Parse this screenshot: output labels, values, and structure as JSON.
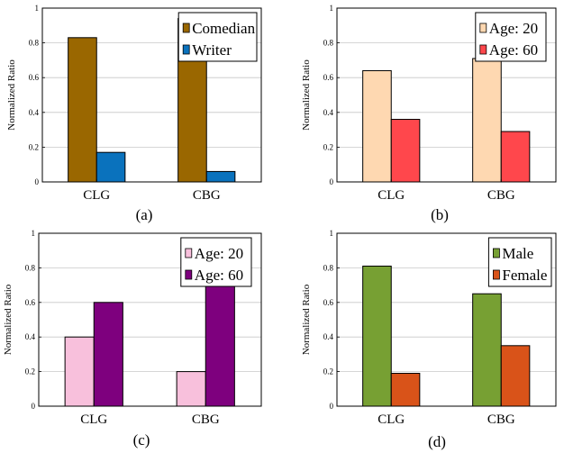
{
  "chart_data": [
    {
      "type": "bar",
      "caption": "(a)",
      "ylabel": "Normalized Ratio",
      "ylim": [
        0,
        1
      ],
      "yticks": [
        "0",
        "0.2",
        "0.4",
        "0.6",
        "0.8",
        "1"
      ],
      "categories": [
        "CLG",
        "CBG"
      ],
      "grid": true,
      "legend_position": "top-right",
      "series": [
        {
          "name": "Comedian",
          "values": [
            0.83,
            0.94
          ],
          "color": "#9a6700"
        },
        {
          "name": "Writer",
          "values": [
            0.17,
            0.06
          ],
          "color": "#0a72bd"
        }
      ]
    },
    {
      "type": "bar",
      "caption": "(b)",
      "ylabel": "Normalized Ratio",
      "ylim": [
        0,
        1
      ],
      "yticks": [
        "0",
        "0.2",
        "0.4",
        "0.6",
        "0.8",
        "1"
      ],
      "categories": [
        "CLG",
        "CBG"
      ],
      "grid": true,
      "legend_position": "top-right",
      "series": [
        {
          "name": "Age: 20",
          "values": [
            0.64,
            0.71
          ],
          "color": "#fed8b1"
        },
        {
          "name": "Age: 60",
          "values": [
            0.36,
            0.29
          ],
          "color": "#ff474c"
        }
      ]
    },
    {
      "type": "bar",
      "caption": "(c)",
      "ylabel": "Normalized Ratio",
      "ylim": [
        0,
        1
      ],
      "yticks": [
        "0",
        "0.2",
        "0.4",
        "0.6",
        "0.8",
        "1"
      ],
      "categories": [
        "CLG",
        "CBG"
      ],
      "grid": true,
      "legend_position": "top-right",
      "series": [
        {
          "name": "Age: 20",
          "values": [
            0.4,
            0.2
          ],
          "color": "#f8c0dc"
        },
        {
          "name": "Age: 60",
          "values": [
            0.6,
            0.8
          ],
          "color": "#7e007e"
        }
      ]
    },
    {
      "type": "bar",
      "caption": "(d)",
      "ylabel": "Normalized Ratio",
      "ylim": [
        0,
        1
      ],
      "yticks": [
        "0",
        "0.2",
        "0.4",
        "0.6",
        "0.8",
        "1"
      ],
      "categories": [
        "CLG",
        "CBG"
      ],
      "grid": true,
      "legend_position": "top-right",
      "series": [
        {
          "name": "Male",
          "values": [
            0.81,
            0.65
          ],
          "color": "#77a033"
        },
        {
          "name": "Female",
          "values": [
            0.19,
            0.35
          ],
          "color": "#d95319"
        }
      ]
    }
  ]
}
